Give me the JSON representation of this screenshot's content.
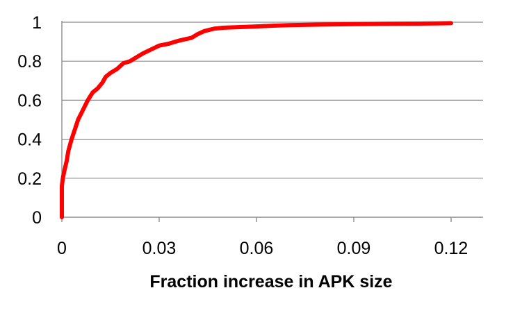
{
  "chart_data": {
    "type": "line",
    "title": "",
    "xlabel": "Fraction increase in APK size",
    "ylabel": "",
    "xlim": [
      0,
      0.12
    ],
    "ylim": [
      0,
      1
    ],
    "x_ticks": [
      "0",
      "0.03",
      "0.06",
      "0.09",
      "0.12"
    ],
    "y_ticks": [
      "0",
      "0.2",
      "0.4",
      "0.6",
      "0.8",
      "1"
    ],
    "grid": "horizontal",
    "legend": "none",
    "series": [
      {
        "color": "#ff0000",
        "x": [
          0,
          0,
          0.0003,
          0.0008,
          0.0015,
          0.002,
          0.003,
          0.004,
          0.005,
          0.0065,
          0.008,
          0.0095,
          0.011,
          0.0125,
          0.0135,
          0.015,
          0.017,
          0.019,
          0.021,
          0.023,
          0.025,
          0.0275,
          0.03,
          0.033,
          0.036,
          0.04,
          0.042,
          0.044,
          0.047,
          0.05,
          0.055,
          0.06,
          0.065,
          0.07,
          0.08,
          0.09,
          0.1,
          0.11,
          0.12
        ],
        "y": [
          0,
          0.16,
          0.2,
          0.24,
          0.29,
          0.34,
          0.4,
          0.45,
          0.5,
          0.55,
          0.6,
          0.64,
          0.66,
          0.69,
          0.72,
          0.74,
          0.76,
          0.79,
          0.8,
          0.82,
          0.84,
          0.86,
          0.88,
          0.89,
          0.905,
          0.92,
          0.94,
          0.955,
          0.967,
          0.972,
          0.975,
          0.978,
          0.982,
          0.985,
          0.988,
          0.99,
          0.992,
          0.993,
          0.995
        ]
      }
    ]
  }
}
